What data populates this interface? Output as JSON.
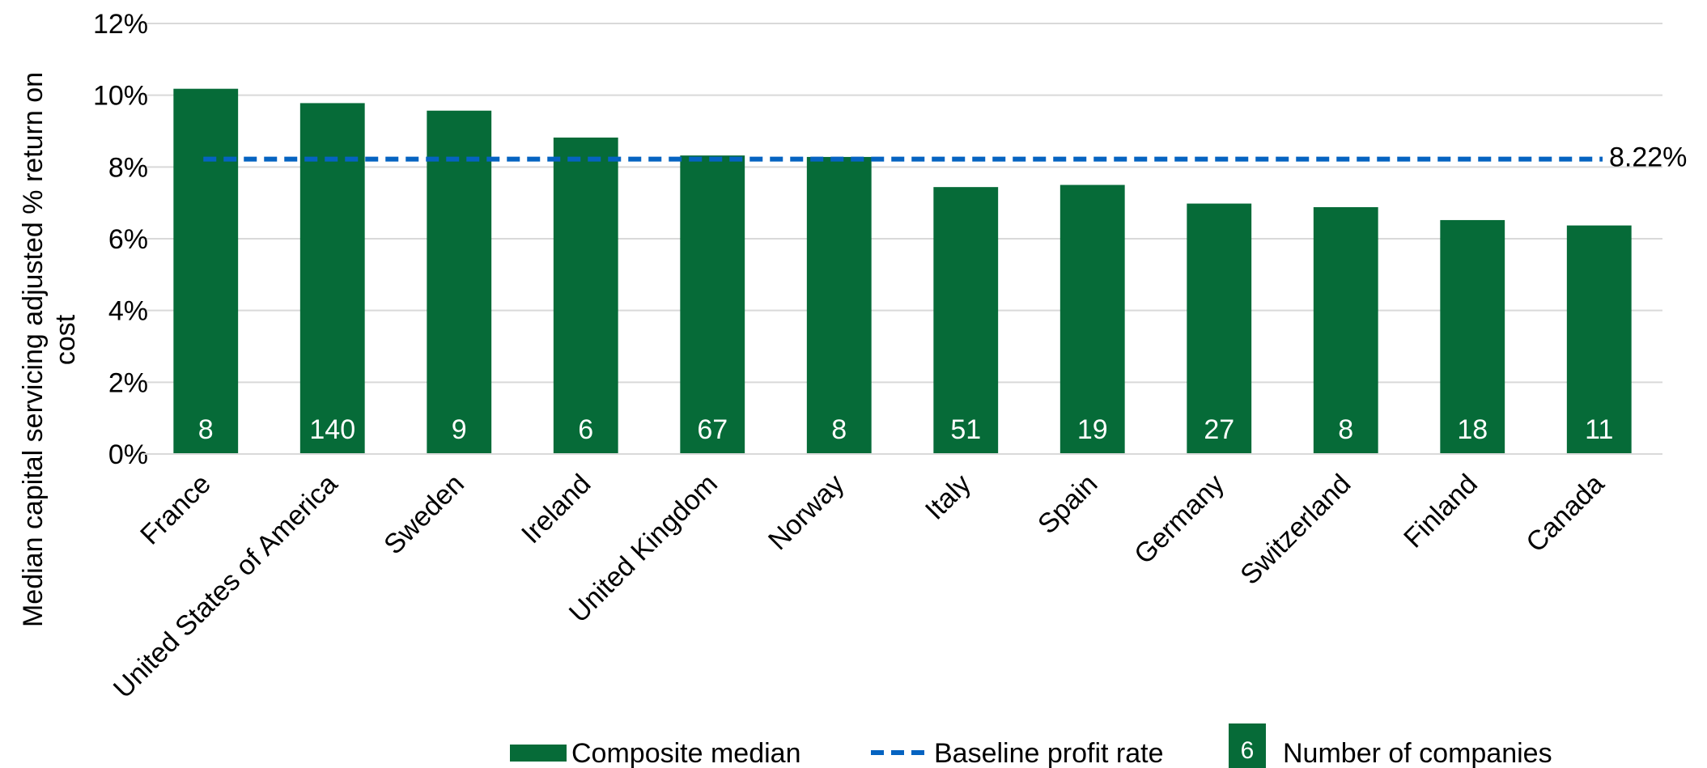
{
  "chart_data": {
    "type": "bar",
    "title": "",
    "xlabel": "",
    "ylabel": "Median capital servicing adjusted  % return on cost",
    "ylabel_lines": [
      "Median capital servicing adjusted  % return on",
      "cost"
    ],
    "ylim": [
      0,
      0.12
    ],
    "yticks": [
      0,
      0.02,
      0.04,
      0.06,
      0.08,
      0.1,
      0.12
    ],
    "ytick_labels": [
      "0%",
      "2%",
      "4%",
      "6%",
      "8%",
      "10%",
      "12%"
    ],
    "grid": true,
    "categories": [
      "France",
      "United States of America",
      "Sweden",
      "Ireland",
      "United Kingdom",
      "Norway",
      "Italy",
      "Spain",
      "Germany",
      "Switzerland",
      "Finland",
      "Canada"
    ],
    "series": [
      {
        "name": "Composite median",
        "color": "#066b38",
        "values": [
          0.1018,
          0.0978,
          0.0957,
          0.0882,
          0.0832,
          0.0828,
          0.0744,
          0.075,
          0.0698,
          0.0688,
          0.0652,
          0.0637
        ],
        "count_labels": [
          "8",
          "140",
          "9",
          "6",
          "67",
          "8",
          "51",
          "19",
          "27",
          "8",
          "18",
          "11"
        ]
      }
    ],
    "baseline": {
      "name": "Baseline profit rate",
      "value": 0.0822,
      "label": "8.22%",
      "color": "#0563c1",
      "style": "dashed"
    },
    "legend": {
      "placement": "bottom",
      "items": [
        {
          "type": "bar",
          "label": "Composite median",
          "color": "#066b38"
        },
        {
          "type": "dashed-line",
          "label": "Baseline profit rate",
          "color": "#0563c1"
        },
        {
          "type": "count-box",
          "sample": "6",
          "label": "Number of companies",
          "color": "#066b38"
        }
      ]
    }
  }
}
